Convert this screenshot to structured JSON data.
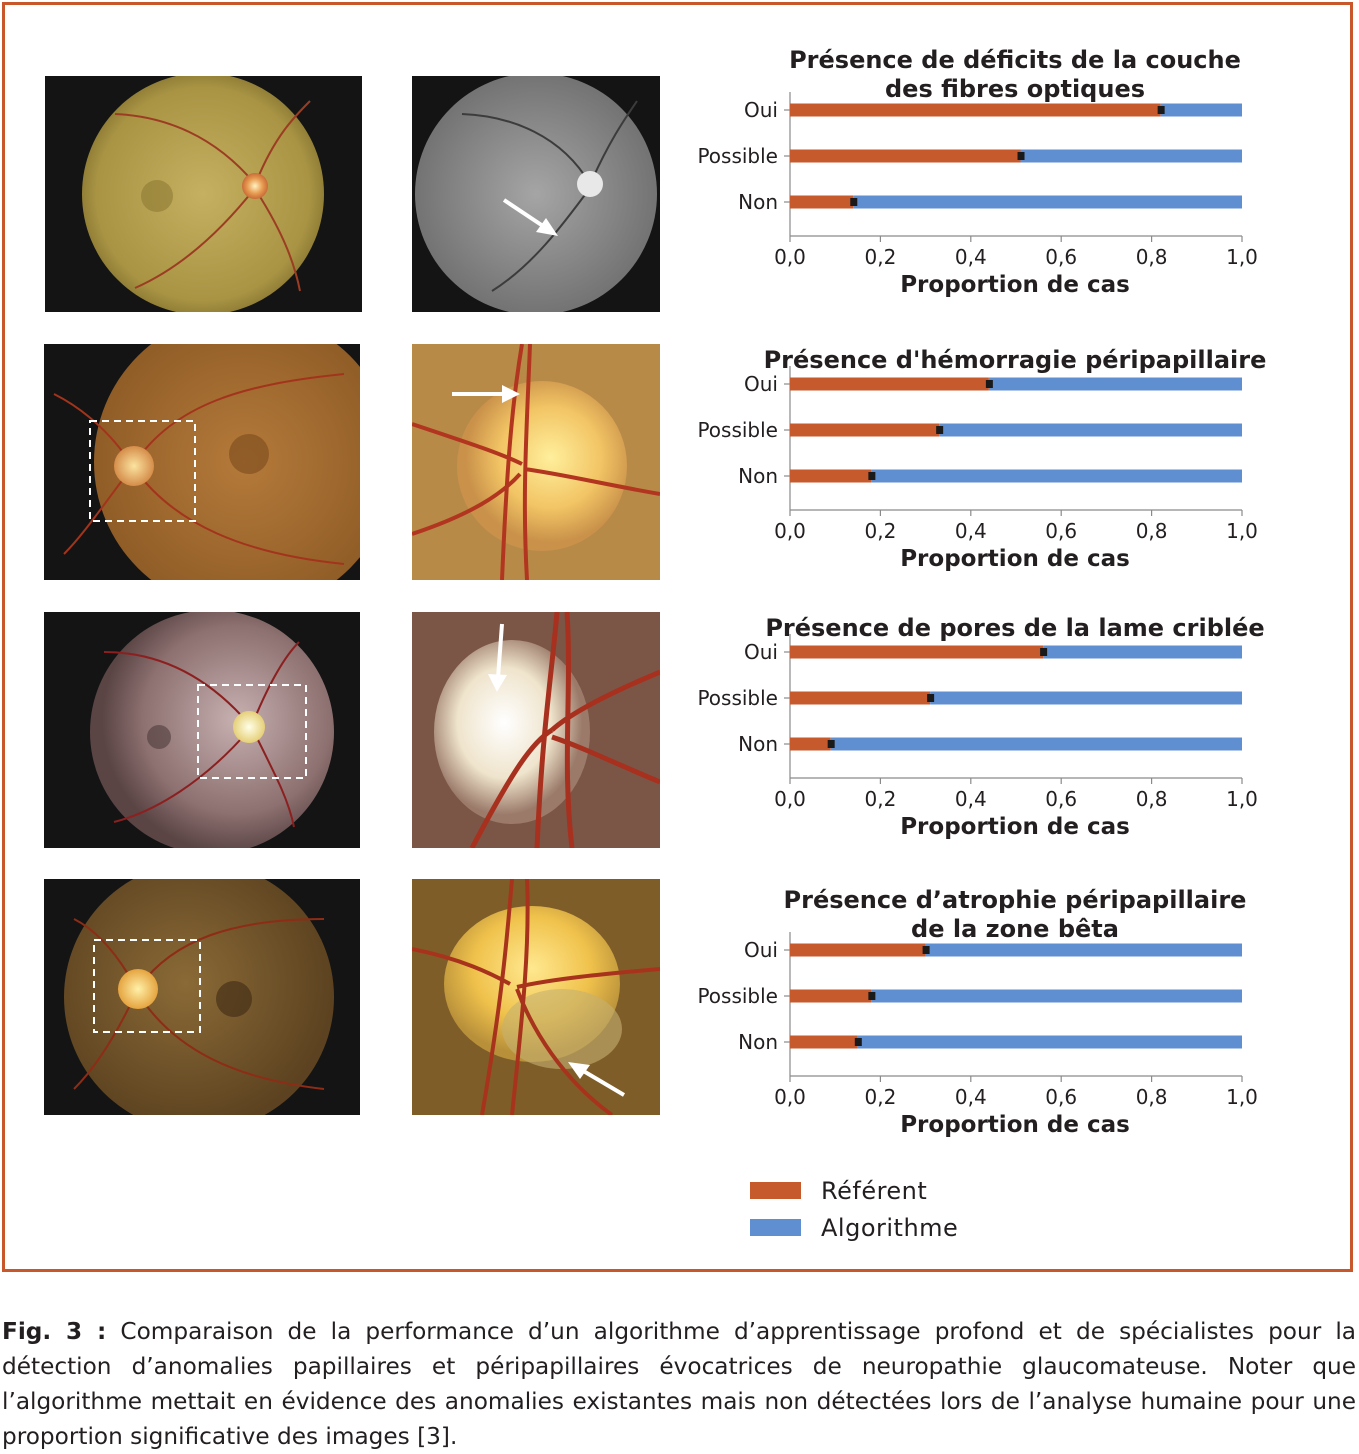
{
  "figure_label": "Fig. 3 :",
  "caption": "Comparaison de la performance d’un algorithme d’apprentissage profond et de spécialistes pour la détection d’anomalies papillaires et péripapillaires évocatrices de neuropathie glaucomateuse. Noter que l’algorithme mettait en évidence des anomalies existantes mais non détectées lors de l’analyse humaine pour une proportion significative des images [3].",
  "colors": {
    "referent": "#c65a2c",
    "algorithme": "#5f8fd0",
    "frame": "#c8582b",
    "error_bar": "#1a1a1a"
  },
  "legend": [
    {
      "label": "Référent",
      "color": "#c65a2c"
    },
    {
      "label": "Algorithme",
      "color": "#5f8fd0"
    }
  ],
  "images": [
    {
      "row": 1,
      "left": "fundus-photo-color",
      "right": "fundus-photo-grayscale-arrow"
    },
    {
      "row": 2,
      "left": "fundus-photo-dashed-box",
      "right": "optic-disc-closeup-arrow"
    },
    {
      "row": 3,
      "left": "fundus-photo-dashed-box",
      "right": "optic-disc-closeup-arrow"
    },
    {
      "row": 4,
      "left": "fundus-photo-dashed-box",
      "right": "optic-disc-closeup-arrow"
    }
  ],
  "chart_data": [
    {
      "type": "bar",
      "orientation": "horizontal-stacked",
      "title_lines": [
        "Présence de déficits de la couche",
        "des fibres optiques"
      ],
      "categories": [
        "Oui",
        "Possible",
        "Non"
      ],
      "series": [
        {
          "name": "Référent",
          "values": [
            0.82,
            0.51,
            0.14
          ]
        },
        {
          "name": "Algorithme",
          "values": [
            0.18,
            0.49,
            0.86
          ]
        }
      ],
      "xlabel": "Proportion de cas",
      "xticks": [
        "0,0",
        "0,2",
        "0,4",
        "0,6",
        "0,8",
        "1,0"
      ],
      "xlim": [
        0,
        1
      ]
    },
    {
      "type": "bar",
      "orientation": "horizontal-stacked",
      "title_lines": [
        "Présence d'hémorragie péripapillaire"
      ],
      "categories": [
        "Oui",
        "Possible",
        "Non"
      ],
      "series": [
        {
          "name": "Référent",
          "values": [
            0.44,
            0.33,
            0.18
          ]
        },
        {
          "name": "Algorithme",
          "values": [
            0.56,
            0.67,
            0.82
          ]
        }
      ],
      "xlabel": "Proportion de cas",
      "xticks": [
        "0,0",
        "0,2",
        "0,4",
        "0,6",
        "0,8",
        "1,0"
      ],
      "xlim": [
        0,
        1
      ]
    },
    {
      "type": "bar",
      "orientation": "horizontal-stacked",
      "title_lines": [
        "Présence de pores de la lame criblée"
      ],
      "categories": [
        "Oui",
        "Possible",
        "Non"
      ],
      "series": [
        {
          "name": "Référent",
          "values": [
            0.56,
            0.31,
            0.09
          ]
        },
        {
          "name": "Algorithme",
          "values": [
            0.44,
            0.69,
            0.91
          ]
        }
      ],
      "xlabel": "Proportion de cas",
      "xticks": [
        "0,0",
        "0,2",
        "0,4",
        "0,6",
        "0,8",
        "1,0"
      ],
      "xlim": [
        0,
        1
      ]
    },
    {
      "type": "bar",
      "orientation": "horizontal-stacked",
      "title_lines": [
        "Présence d’atrophie péripapillaire",
        "de la zone bêta"
      ],
      "categories": [
        "Oui",
        "Possible",
        "Non"
      ],
      "series": [
        {
          "name": "Référent",
          "values": [
            0.3,
            0.18,
            0.15
          ]
        },
        {
          "name": "Algorithme",
          "values": [
            0.7,
            0.82,
            0.85
          ]
        }
      ],
      "xlabel": "Proportion de cas",
      "xticks": [
        "0,0",
        "0,2",
        "0,4",
        "0,6",
        "0,8",
        "1,0"
      ],
      "xlim": [
        0,
        1
      ]
    }
  ]
}
